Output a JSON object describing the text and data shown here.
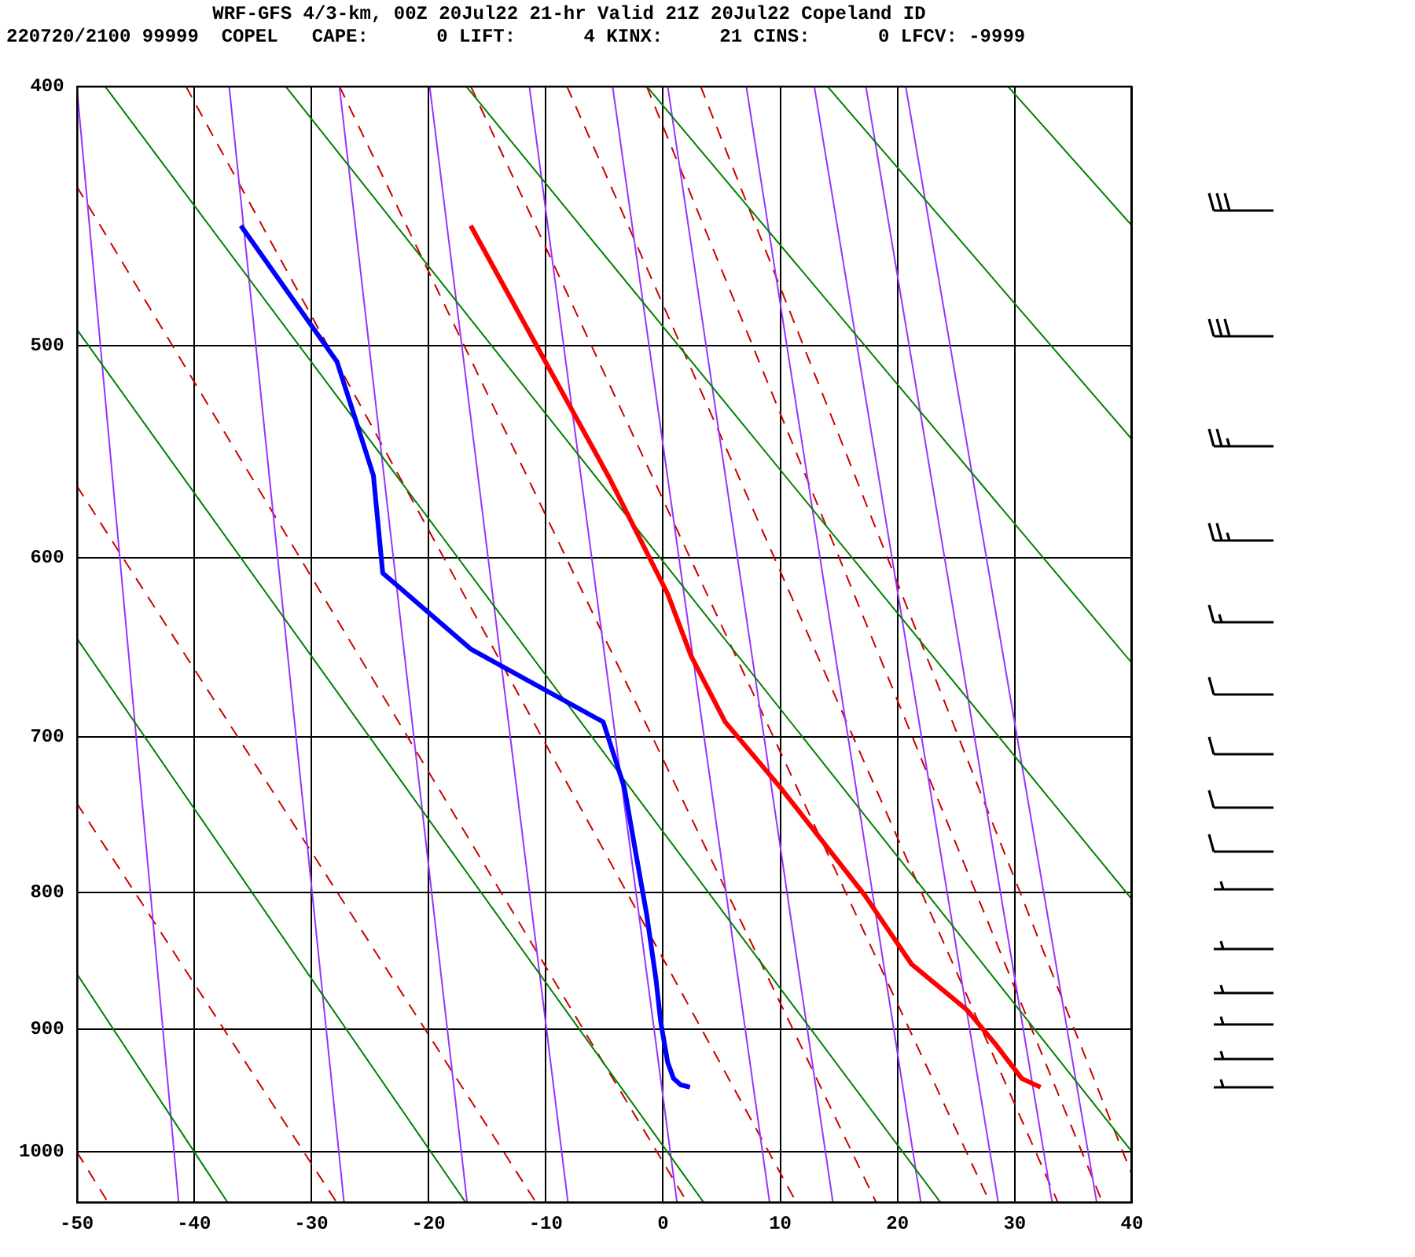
{
  "chart_data": {
    "type": "line",
    "title": "WRF-GFS 4/3-km, 00Z 20Jul22 21-hr Valid 21Z 20Jul22 Copeland ID",
    "subtitle": "220720/2100 99999  COPEL   CAPE:      0 LIFT:      4 KINX:     21 CINS:      0 LFCV: -9999",
    "xlim": [
      -50,
      40
    ],
    "xticks": [
      -50,
      -40,
      -30,
      -20,
      -10,
      0,
      10,
      20,
      30,
      40
    ],
    "ylim": [
      1045,
      400
    ],
    "yticks": [
      400,
      500,
      600,
      700,
      800,
      900,
      1000
    ],
    "grid": true,
    "marker": "none",
    "log": "y",
    "series": [
      {
        "color": "#ff0000",
        "x": [
          -16.4,
          -11.0,
          -4.6,
          0.4,
          2.4,
          5.3,
          10.0,
          17.2,
          21.2,
          25.9,
          28.3,
          30.6,
          32.2
        ],
        "values": [
          451,
          498,
          560,
          619,
          653,
          691,
          731,
          802,
          851,
          885,
          911,
          939,
          946
        ]
      },
      {
        "color": "#0000ff",
        "x": [
          -36.0,
          -27.8,
          -24.7,
          -23.9,
          -16.4,
          -5.1,
          -3.3,
          -2.4,
          -1.4,
          -0.6,
          -0.2,
          0.4,
          0.9,
          1.5,
          2.3
        ],
        "values": [
          451,
          507,
          559,
          608,
          649,
          691,
          731,
          770,
          815,
          862,
          894,
          926,
          939,
          944,
          946
        ]
      },
      {
        "color": "#008000",
        "line_style": "solid",
        "x": [
          -50,
          -37.1
        ],
        "values": [
          858,
          1045
        ]
      },
      {
        "color": "#008000",
        "line_style": "solid",
        "x": [
          -50,
          -16.8
        ],
        "values": [
          643,
          1045
        ]
      },
      {
        "color": "#008000",
        "line_style": "solid",
        "x": [
          -50,
          3.5
        ],
        "values": [
          493,
          1045
        ]
      },
      {
        "color": "#008000",
        "line_style": "solid",
        "x": [
          -47.6,
          23.7
        ],
        "values": [
          400,
          1045
        ]
      },
      {
        "color": "#008000",
        "line_style": "solid",
        "x": [
          -32.2,
          40
        ],
        "values": [
          400,
          1000
        ]
      },
      {
        "color": "#008000",
        "line_style": "solid",
        "x": [
          -16.8,
          40
        ],
        "values": [
          400,
          805
        ]
      },
      {
        "color": "#008000",
        "line_style": "solid",
        "x": [
          -1.4,
          40
        ],
        "values": [
          400,
          657
        ]
      },
      {
        "color": "#008000",
        "line_style": "solid",
        "x": [
          14.0,
          40
        ],
        "values": [
          400,
          542
        ]
      },
      {
        "color": "#008000",
        "line_style": "solid",
        "x": [
          29.4,
          40
        ],
        "values": [
          400,
          451
        ]
      },
      {
        "color": "#9933ff",
        "line_style": "solid",
        "x": [
          -50.0,
          -41.3
        ],
        "values": [
          400,
          1045
        ]
      },
      {
        "color": "#9933ff",
        "line_style": "solid",
        "x": [
          -37.0,
          -27.2
        ],
        "values": [
          400,
          1045
        ]
      },
      {
        "color": "#9933ff",
        "line_style": "solid",
        "x": [
          -27.6,
          -16.7
        ],
        "values": [
          400,
          1045
        ]
      },
      {
        "color": "#9933ff",
        "line_style": "solid",
        "x": [
          -19.9,
          -8.1
        ],
        "values": [
          400,
          1045
        ]
      },
      {
        "color": "#9933ff",
        "line_style": "solid",
        "x": [
          -11.4,
          1.2
        ],
        "values": [
          400,
          1045
        ]
      },
      {
        "color": "#9933ff",
        "line_style": "solid",
        "x": [
          -4.3,
          9.1
        ],
        "values": [
          400,
          1045
        ]
      },
      {
        "color": "#9933ff",
        "line_style": "solid",
        "x": [
          0.4,
          14.5
        ],
        "values": [
          400,
          1045
        ]
      },
      {
        "color": "#9933ff",
        "line_style": "solid",
        "x": [
          7.1,
          22.0
        ],
        "values": [
          400,
          1045
        ]
      },
      {
        "color": "#9933ff",
        "line_style": "solid",
        "x": [
          12.9,
          28.6
        ],
        "values": [
          400,
          1045
        ]
      },
      {
        "color": "#9933ff",
        "line_style": "solid",
        "x": [
          17.3,
          33.2
        ],
        "values": [
          400,
          1045
        ]
      },
      {
        "color": "#9933ff",
        "line_style": "solid",
        "x": [
          20.7,
          37.0
        ],
        "values": [
          400,
          1045
        ]
      },
      {
        "color": "#cc0000",
        "line_style": "dashed",
        "x": [
          -50,
          -47.3
        ],
        "values": [
          1000,
          1045
        ]
      },
      {
        "color": "#cc0000",
        "line_style": "dashed",
        "x": [
          -50,
          -27.8
        ],
        "values": [
          741,
          1045
        ]
      },
      {
        "color": "#cc0000",
        "line_style": "dashed",
        "x": [
          -50,
          -10.8
        ],
        "values": [
          564,
          1045
        ]
      },
      {
        "color": "#cc0000",
        "line_style": "dashed",
        "x": [
          -50,
          2.1
        ],
        "values": [
          436,
          1045
        ]
      },
      {
        "color": "#cc0000",
        "line_style": "dashed",
        "x": [
          -40.7,
          11.4
        ],
        "values": [
          400,
          1045
        ]
      },
      {
        "color": "#cc0000",
        "line_style": "dashed",
        "x": [
          -27.6,
          18.2
        ],
        "values": [
          400,
          1045
        ]
      },
      {
        "color": "#cc0000",
        "line_style": "dashed",
        "x": [
          -16.4,
          27.9
        ],
        "values": [
          400,
          1045
        ]
      },
      {
        "color": "#cc0000",
        "line_style": "dashed",
        "x": [
          -8.2,
          33.7
        ],
        "values": [
          400,
          1045
        ]
      },
      {
        "color": "#cc0000",
        "line_style": "dashed",
        "x": [
          -1.4,
          37.5
        ],
        "values": [
          400,
          1045
        ]
      },
      {
        "color": "#cc0000",
        "line_style": "dashed",
        "x": [
          3.2,
          40
        ],
        "values": [
          400,
          1020
        ]
      }
    ]
  }
}
